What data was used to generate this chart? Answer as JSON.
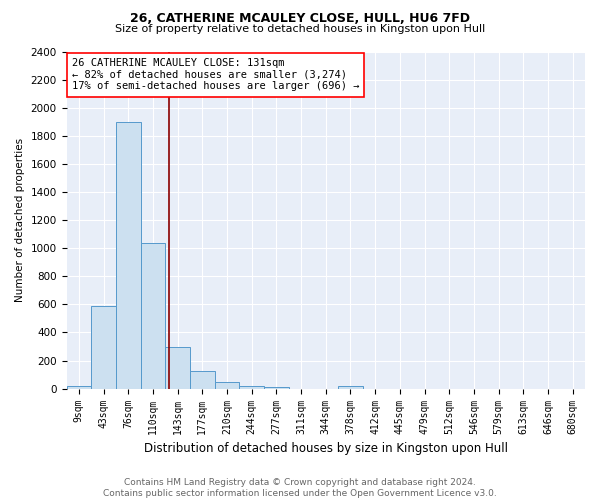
{
  "title": "26, CATHERINE MCAULEY CLOSE, HULL, HU6 7FD",
  "subtitle": "Size of property relative to detached houses in Kingston upon Hull",
  "xlabel": "Distribution of detached houses by size in Kingston upon Hull",
  "ylabel": "Number of detached properties",
  "footnote": "Contains HM Land Registry data © Crown copyright and database right 2024.\nContains public sector information licensed under the Open Government Licence v3.0.",
  "bin_labels": [
    "9sqm",
    "43sqm",
    "76sqm",
    "110sqm",
    "143sqm",
    "177sqm",
    "210sqm",
    "244sqm",
    "277sqm",
    "311sqm",
    "344sqm",
    "378sqm",
    "412sqm",
    "445sqm",
    "479sqm",
    "512sqm",
    "546sqm",
    "579sqm",
    "613sqm",
    "646sqm",
    "680sqm"
  ],
  "bar_heights": [
    20,
    590,
    1900,
    1040,
    295,
    125,
    48,
    18,
    12,
    0,
    0,
    20,
    0,
    0,
    0,
    0,
    0,
    0,
    0,
    0,
    0
  ],
  "bar_color": "#cce0f0",
  "bar_edge_color": "#5599cc",
  "ylim": [
    0,
    2400
  ],
  "yticks": [
    0,
    200,
    400,
    600,
    800,
    1000,
    1200,
    1400,
    1600,
    1800,
    2000,
    2200,
    2400
  ],
  "vline_x": 3.636,
  "vline_color": "#8b0000",
  "annotation_title": "26 CATHERINE MCAULEY CLOSE: 131sqm",
  "annotation_line1": "← 82% of detached houses are smaller (3,274)",
  "annotation_line2": "17% of semi-detached houses are larger (696) →",
  "background_color": "#ffffff",
  "plot_bg_color": "#e8eef8",
  "title_fontsize": 9,
  "subtitle_fontsize": 8,
  "xlabel_fontsize": 8.5,
  "ylabel_fontsize": 7.5,
  "tick_fontsize": 7,
  "footnote_fontsize": 6.5,
  "footnote_color": "#666666"
}
